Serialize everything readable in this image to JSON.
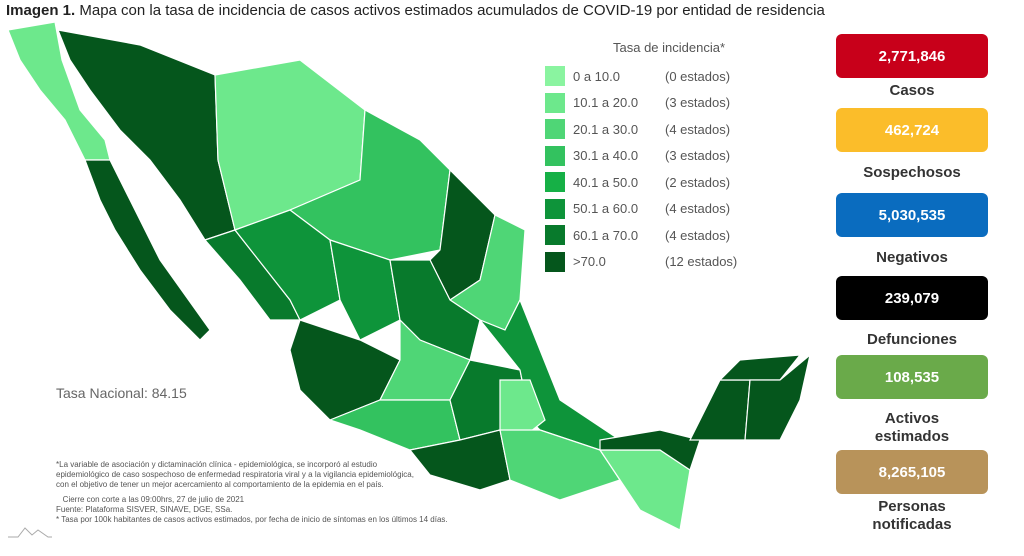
{
  "title": {
    "prefix": "Imagen 1.",
    "text": " Mapa con la tasa de incidencia de casos activos estimados acumulados de COVID-19 por entidad de residencia"
  },
  "legend": {
    "title": "Tasa de incidencia*",
    "items": [
      {
        "range": "0   a  10.0",
        "count": "(0 estados)",
        "color": "#8af4a0"
      },
      {
        "range": "10.1 a  20.0",
        "count": "(3 estados)",
        "color": "#6de88c"
      },
      {
        "range": "20.1 a  30.0",
        "count": "(4 estados)",
        "color": "#4fd676"
      },
      {
        "range": "30.1 a  40.0",
        "count": "(3 estados)",
        "color": "#33c25f"
      },
      {
        "range": "40.1 a  50.0",
        "count": "(2 estados)",
        "color": "#16b046"
      },
      {
        "range": "50.1 a  60.0",
        "count": "(4 estados)",
        "color": "#0e943a"
      },
      {
        "range": "60.1 a  70.0",
        "count": "(4 estados)",
        "color": "#087a2c"
      },
      {
        "range": ">70.0",
        "count": "(12 estados)",
        "color": "#05561c"
      }
    ]
  },
  "tasa_nacional": "Tasa Nacional: 84.15",
  "notes": [
    "*La variable de asociación y dictaminación clínica - epidemiológica, se incorporó al estudio",
    "epidemiológico de caso sospechoso de enfermedad respiratoria viral y a la vigilancia epidemiológica,",
    "con el objetivo de tener un mejor acercamiento al comportamiento de la epidemia en el país.",
    "   Cierre con corte a las 09:00hrs, 27 de julio de 2021",
    "Fuente: Plataforma SISVER, SINAVE, DGE, SSa.",
    "* Tasa por 100k habitantes de casos activos estimados, por fecha de inicio de síntomas en los últimos 14 días."
  ],
  "stats": [
    {
      "value": "2,771,846",
      "label": "Casos",
      "color": "#c8001a"
    },
    {
      "value": "462,724",
      "label": "Sospechosos",
      "color": "#fbbd2a"
    },
    {
      "value": "5,030,535",
      "label": "Negativos",
      "color": "#0a6cbf"
    },
    {
      "value": "239,079",
      "label": "Defunciones",
      "color": "#000000"
    },
    {
      "value": "108,535",
      "label": "Activos estimados",
      "color": "#6aaa4a"
    },
    {
      "value": "8,265,105",
      "label": "Personas notificadas",
      "color": "#b8935a"
    }
  ]
}
